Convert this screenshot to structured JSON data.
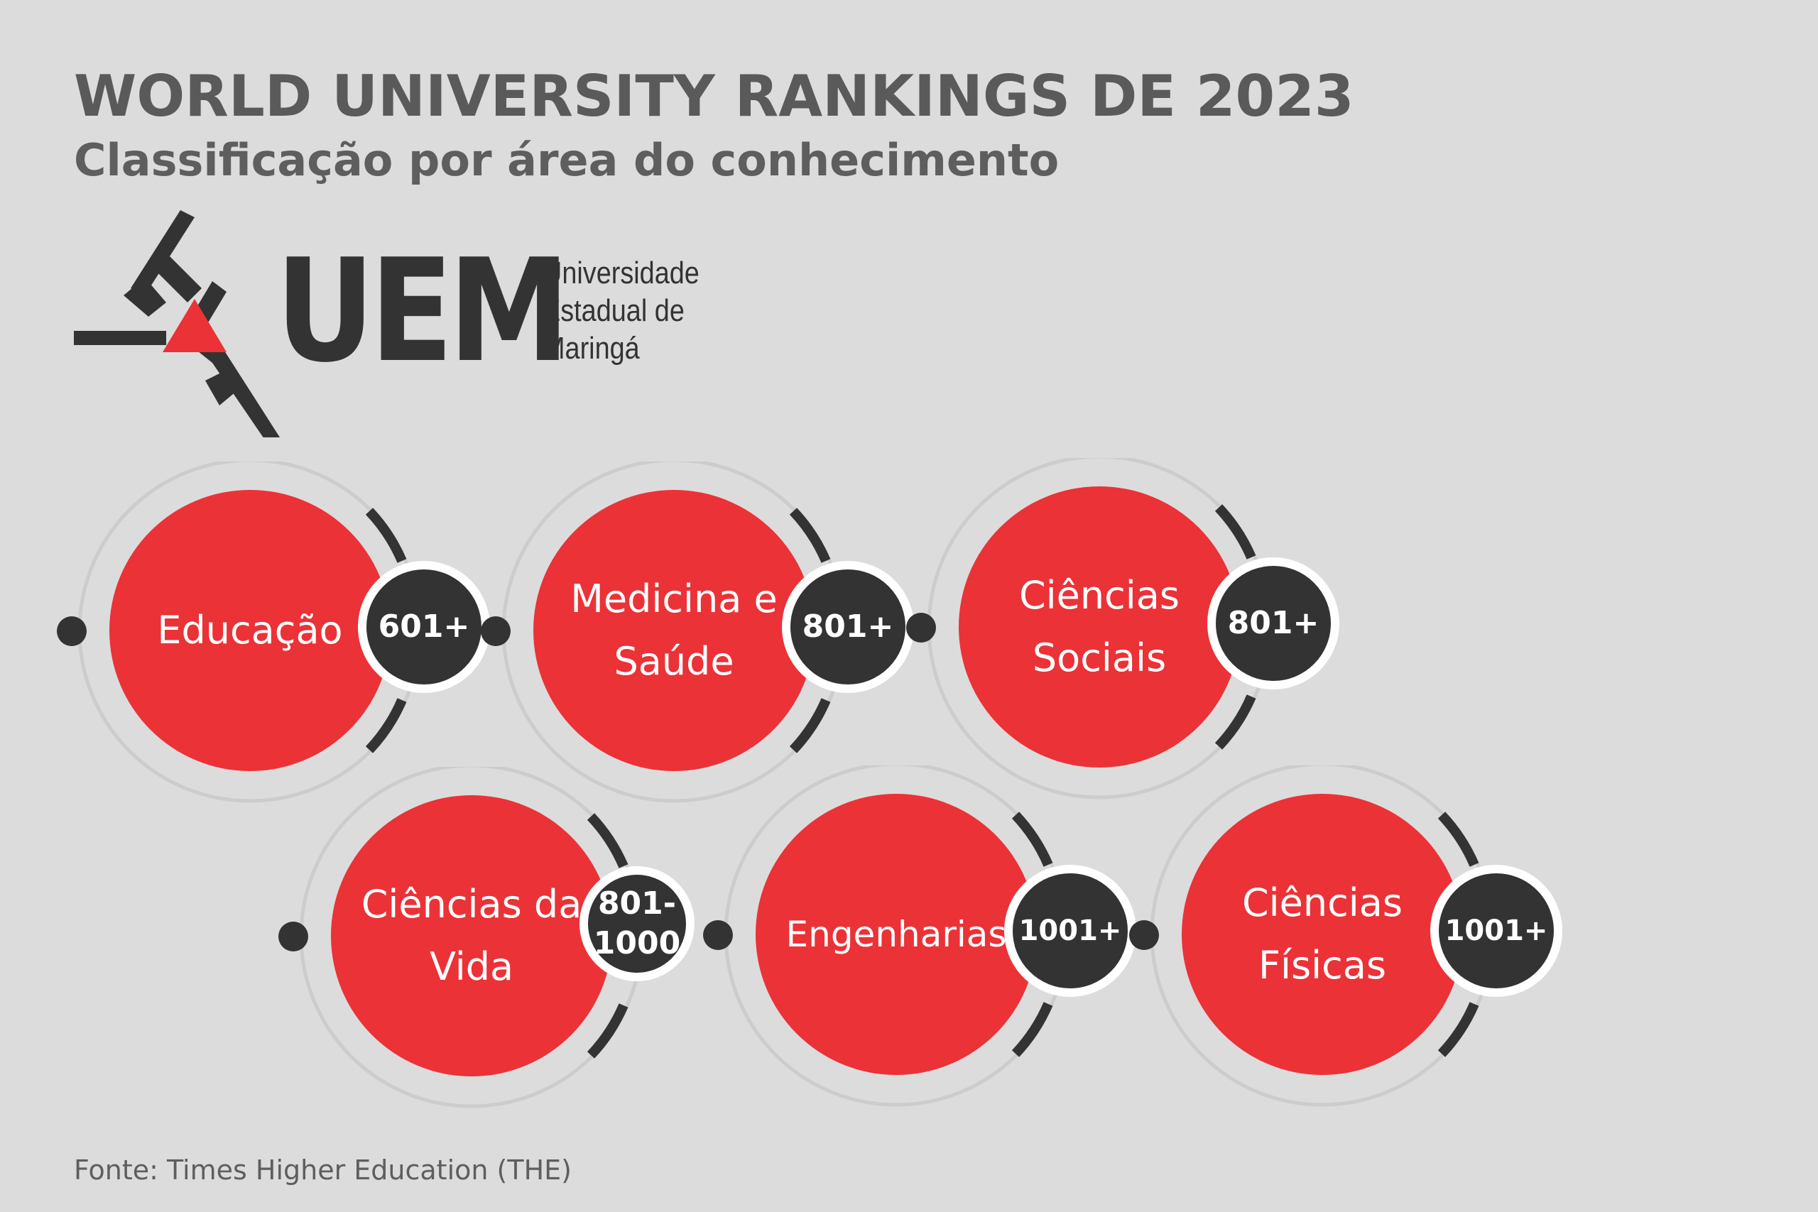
{
  "header": {
    "title": "WORLD UNIVERSITY RANKINGS DE 2023",
    "subtitle": "Classificação por área do conhecimento"
  },
  "logo": {
    "letters": "UEM",
    "name_lines": [
      "Universidade",
      "Estadual de",
      "Maringá"
    ]
  },
  "colors": {
    "background": "#dcdcdc",
    "circle": "#eb3237",
    "badge": "#333333",
    "ring": "#cccccc",
    "text": "#5a5a5a"
  },
  "rankings": [
    {
      "area": "Educação",
      "rank": "601+"
    },
    {
      "area": "Medicina e Saúde",
      "rank": "801+"
    },
    {
      "area": "Ciências Sociais",
      "rank": "801+"
    },
    {
      "area": "Ciências da Vida",
      "rank": "801-1000"
    },
    {
      "area": "Engenharias",
      "rank": "1001+"
    },
    {
      "area": "Ciências Físicas",
      "rank": "1001+"
    }
  ],
  "footer": {
    "source": "Fonte: Times Higher Education (THE)"
  }
}
